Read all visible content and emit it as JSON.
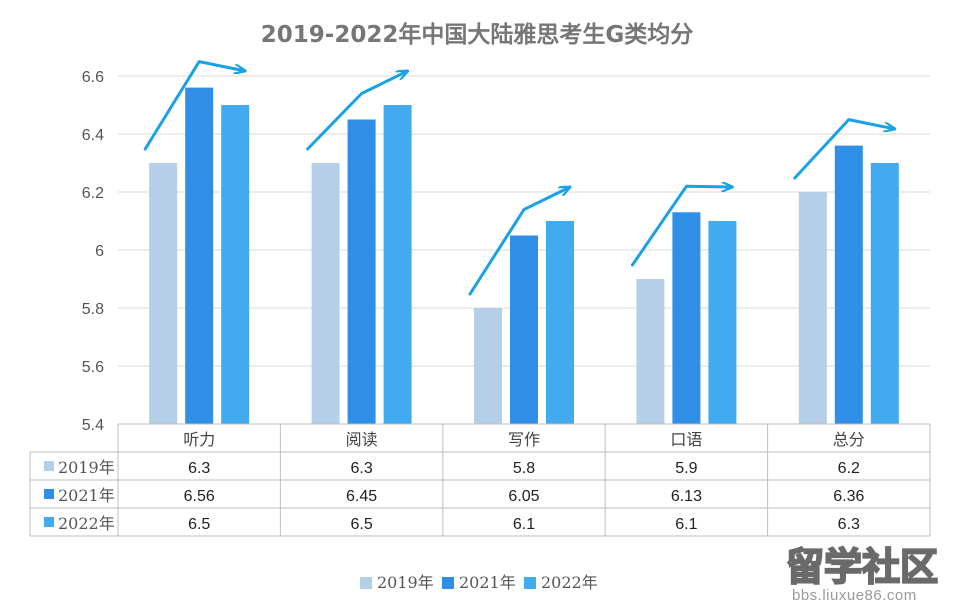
{
  "chart_data": {
    "type": "bar",
    "title": "2019-2022年中国大陆雅思考生G类均分",
    "categories": [
      "听力",
      "阅读",
      "写作",
      "口语",
      "总分"
    ],
    "series": [
      {
        "name": "2019年",
        "values": [
          6.3,
          6.3,
          5.8,
          5.9,
          6.2
        ],
        "color": "#b6cfe8"
      },
      {
        "name": "2021年",
        "values": [
          6.56,
          6.45,
          6.05,
          6.13,
          6.36
        ],
        "color": "#2f8fe6"
      },
      {
        "name": "2022年",
        "values": [
          6.5,
          6.5,
          6.1,
          6.1,
          6.3
        ],
        "color": "#42abf0"
      }
    ],
    "table_values": [
      [
        "6.3",
        "6.3",
        "5.8",
        "5.9",
        "6.2"
      ],
      [
        "6.56",
        "6.45",
        "6.05",
        "6.13",
        "6.36"
      ],
      [
        "6.5",
        "6.5",
        "6.1",
        "6.1",
        "6.3"
      ]
    ],
    "yticks": [
      "6.6",
      "6.4",
      "6.2",
      "6",
      "5.8",
      "5.6",
      "5.4"
    ],
    "ylim": [
      5.4,
      6.6
    ],
    "grid": true,
    "legend": "bottom",
    "annotation_arrow_color": "#1aa1e6"
  },
  "watermark": {
    "text": "留学社区",
    "url": "bbs.liuxue86.com"
  }
}
